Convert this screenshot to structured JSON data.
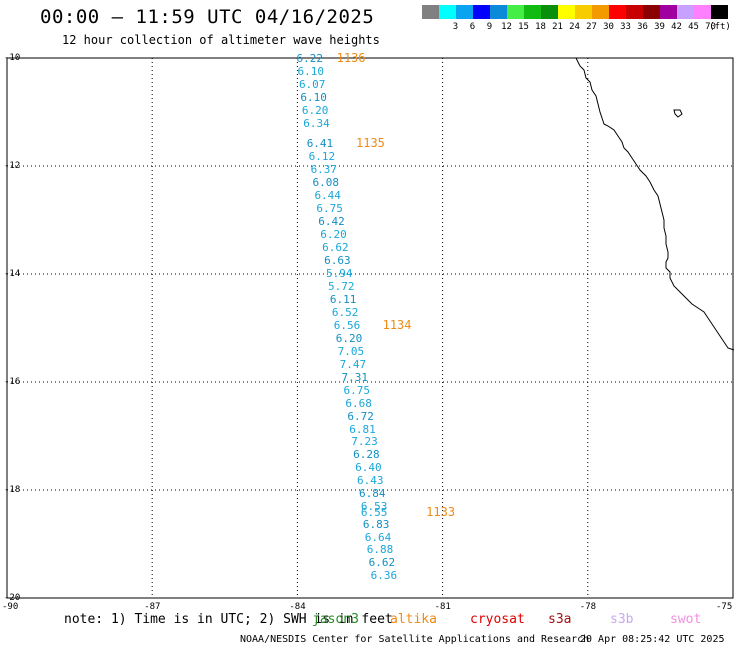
{
  "header": {
    "title": "00:00 – 11:59 UTC 04/16/2025",
    "subtitle": "12 hour collection of altimeter wave heights"
  },
  "color_scale": {
    "unit": "(ft)",
    "bins": [
      {
        "label": "",
        "color": "#808080"
      },
      {
        "label": "3",
        "color": "#00ffff"
      },
      {
        "label": "6",
        "color": "#0aa3f0"
      },
      {
        "label": "9",
        "color": "#0000ff"
      },
      {
        "label": "12",
        "color": "#0a8ad8"
      },
      {
        "label": "15",
        "color": "#44ee44"
      },
      {
        "label": "18",
        "color": "#11bb11"
      },
      {
        "label": "21",
        "color": "#0a8f0a"
      },
      {
        "label": "24",
        "color": "#ffff00"
      },
      {
        "label": "27",
        "color": "#f7cc00"
      },
      {
        "label": "30",
        "color": "#f29a00"
      },
      {
        "label": "33",
        "color": "#ff0000"
      },
      {
        "label": "36",
        "color": "#c80000"
      },
      {
        "label": "39",
        "color": "#8b0000"
      },
      {
        "label": "42",
        "color": "#a000a0"
      },
      {
        "label": "45",
        "color": "#c8a0ff"
      },
      {
        "label": "70",
        "color": "#ff80ff"
      },
      {
        "label": "",
        "color": "#000000"
      }
    ]
  },
  "map": {
    "lat_labels": [
      "-10",
      "-12",
      "-14",
      "-16",
      "-18",
      "-20"
    ],
    "lon_labels": [
      "-90",
      "-87",
      "-84",
      "-81",
      "-78",
      "-75"
    ],
    "wave_heights": [
      {
        "v": "6.22",
        "lon": -83.77,
        "lat": -10.02
      },
      {
        "v": "6.10",
        "lon": -83.75,
        "lat": -10.26
      },
      {
        "v": "6.07",
        "lon": -83.72,
        "lat": -10.5
      },
      {
        "v": "6.10",
        "lon": -83.69,
        "lat": -10.74
      },
      {
        "v": "6.20",
        "lon": -83.66,
        "lat": -10.98
      },
      {
        "v": "6.34",
        "lon": -83.63,
        "lat": -11.22
      },
      {
        "v": "6.41",
        "lon": -83.56,
        "lat": -11.6
      },
      {
        "v": "6.12",
        "lon": -83.52,
        "lat": -11.84
      },
      {
        "v": "6.37",
        "lon": -83.48,
        "lat": -12.08
      },
      {
        "v": "6.08",
        "lon": -83.44,
        "lat": -12.32
      },
      {
        "v": "6.44",
        "lon": -83.4,
        "lat": -12.56
      },
      {
        "v": "6.75",
        "lon": -83.36,
        "lat": -12.8
      },
      {
        "v": "6.42",
        "lon": -83.32,
        "lat": -13.04
      },
      {
        "v": "6.20",
        "lon": -83.28,
        "lat": -13.28
      },
      {
        "v": "6.62",
        "lon": -83.24,
        "lat": -13.52
      },
      {
        "v": "6.63",
        "lon": -83.2,
        "lat": -13.76
      },
      {
        "v": "5.94",
        "lon": -83.16,
        "lat": -14.0
      },
      {
        "v": "5.72",
        "lon": -83.12,
        "lat": -14.24
      },
      {
        "v": "6.11",
        "lon": -83.08,
        "lat": -14.48
      },
      {
        "v": "6.52",
        "lon": -83.04,
        "lat": -14.72
      },
      {
        "v": "6.56",
        "lon": -83.0,
        "lat": -14.96
      },
      {
        "v": "6.20",
        "lon": -82.96,
        "lat": -15.2
      },
      {
        "v": "7.05",
        "lon": -82.92,
        "lat": -15.44
      },
      {
        "v": "7.47",
        "lon": -82.88,
        "lat": -15.68
      },
      {
        "v": "7.31",
        "lon": -82.84,
        "lat": -15.92
      },
      {
        "v": "6.75",
        "lon": -82.8,
        "lat": -16.16
      },
      {
        "v": "6.68",
        "lon": -82.76,
        "lat": -16.4
      },
      {
        "v": "6.72",
        "lon": -82.72,
        "lat": -16.64
      },
      {
        "v": "6.81",
        "lon": -82.68,
        "lat": -16.88
      },
      {
        "v": "7.23",
        "lon": -82.64,
        "lat": -17.12
      },
      {
        "v": "6.28",
        "lon": -82.6,
        "lat": -17.36
      },
      {
        "v": "6.40",
        "lon": -82.56,
        "lat": -17.6
      },
      {
        "v": "6.43",
        "lon": -82.52,
        "lat": -17.84
      },
      {
        "v": "6.84",
        "lon": -82.48,
        "lat": -18.08
      },
      {
        "v": "6.53",
        "lon": -82.44,
        "lat": -18.32
      },
      {
        "v": "6.55",
        "lon": -82.44,
        "lat": -18.42
      },
      {
        "v": "6.83",
        "lon": -82.4,
        "lat": -18.64
      },
      {
        "v": "6.64",
        "lon": -82.36,
        "lat": -18.88
      },
      {
        "v": "6.88",
        "lon": -82.32,
        "lat": -19.12
      },
      {
        "v": "6.62",
        "lon": -82.28,
        "lat": -19.36
      },
      {
        "v": "6.36",
        "lon": -82.24,
        "lat": -19.6
      }
    ],
    "orbit_labels": [
      {
        "v": "1136",
        "lon": -82.9,
        "lat": -10.02
      },
      {
        "v": "1135",
        "lon": -82.5,
        "lat": -11.6
      },
      {
        "v": "1134",
        "lon": -81.95,
        "lat": -14.96
      },
      {
        "v": "1133",
        "lon": -81.05,
        "lat": -18.42
      }
    ]
  },
  "legend": {
    "note": "note: 1) Time is in UTC; 2) SWH is in feet",
    "satellites": [
      {
        "name": "jason3",
        "color": "#2a8a2a"
      },
      {
        "name": "altika",
        "color": "#ef8a14"
      },
      {
        "name": "cryosat",
        "color": "#e00000"
      },
      {
        "name": "s3a",
        "color": "#a01010"
      },
      {
        "name": "s3b",
        "color": "#c8a8f0"
      },
      {
        "name": "swot",
        "color": "#f090e0"
      }
    ]
  },
  "footer": {
    "credit": "NOAA/NESDIS Center for Satellite Applications and Research",
    "timestamp": "20 Apr 08:25:42 UTC 2025"
  }
}
